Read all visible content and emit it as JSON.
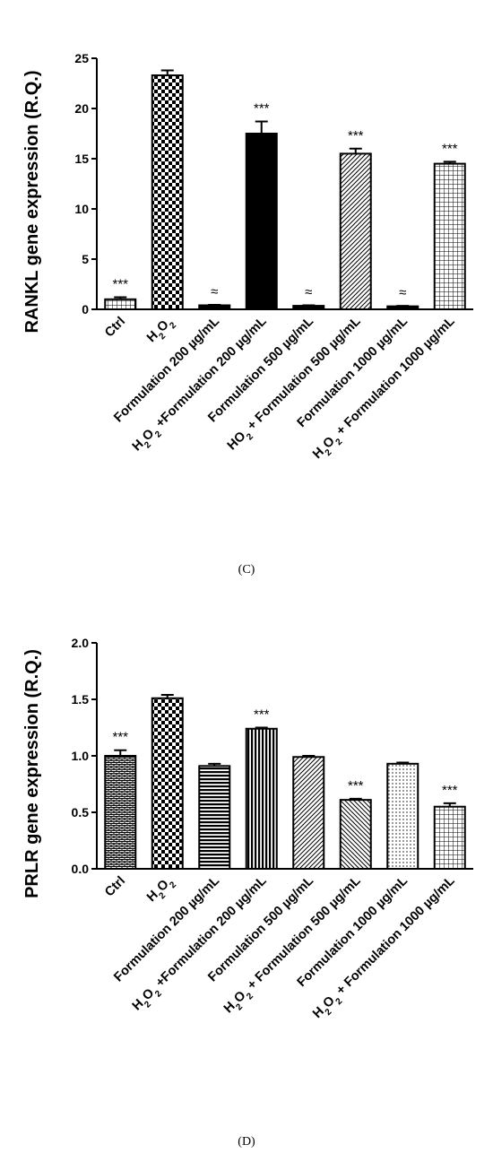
{
  "chart_data": [
    {
      "panel_label": "(C)",
      "type": "bar",
      "ylabel": "RANKL gene expression (R.Q.)",
      "xlabel": "",
      "ylim": [
        0,
        25
      ],
      "yticks": [
        "0",
        "5",
        "10",
        "15",
        "20",
        "25"
      ],
      "grid": false,
      "categories": [
        {
          "parts": [
            {
              "t": "Ctrl"
            }
          ]
        },
        {
          "parts": [
            {
              "t": "H"
            },
            {
              "t": "2",
              "sub": true
            },
            {
              "t": "O"
            },
            {
              "t": "2",
              "sub": true
            }
          ]
        },
        {
          "parts": [
            {
              "t": "Formulation 200 µg/mL"
            }
          ]
        },
        {
          "parts": [
            {
              "t": "H"
            },
            {
              "t": "2",
              "sub": true
            },
            {
              "t": "O"
            },
            {
              "t": "2",
              "sub": true
            },
            {
              "t": " +Formulation 200 µg/mL"
            }
          ]
        },
        {
          "parts": [
            {
              "t": "Formulation 500 µg/mL"
            }
          ]
        },
        {
          "parts": [
            {
              "t": "H"
            },
            {
              "t": "O"
            },
            {
              "t": "2",
              "sub": true
            },
            {
              "t": " + Formulation 500 µg/mL"
            }
          ]
        },
        {
          "parts": [
            {
              "t": "Formulation 1000 µg/mL"
            }
          ]
        },
        {
          "parts": [
            {
              "t": "H"
            },
            {
              "t": "2",
              "sub": true
            },
            {
              "t": "O"
            },
            {
              "t": "2",
              "sub": true
            },
            {
              "t": " + Formulation 1000 µg/mL"
            }
          ]
        }
      ],
      "values": [
        1.0,
        23.3,
        0.4,
        17.5,
        0.35,
        15.5,
        0.3,
        14.5
      ],
      "errors": [
        0.2,
        0.5,
        0.05,
        1.2,
        0.05,
        0.5,
        0.05,
        0.2
      ],
      "annotations": [
        "***",
        "",
        "≈",
        "***",
        "≈",
        "***",
        "≈",
        "***"
      ],
      "patterns": [
        "grid",
        "checker",
        "solid",
        "solid",
        "solid",
        "diag",
        "solid",
        "grid"
      ]
    },
    {
      "panel_label": "(D)",
      "type": "bar",
      "ylabel": "PRLR gene expression (R.Q.)",
      "xlabel": "",
      "ylim": [
        0,
        2.0
      ],
      "yticks": [
        "0.0",
        "0.5",
        "1.0",
        "1.5",
        "2.0"
      ],
      "grid": false,
      "categories": [
        {
          "parts": [
            {
              "t": "Ctrl"
            }
          ]
        },
        {
          "parts": [
            {
              "t": "H"
            },
            {
              "t": "2",
              "sub": true
            },
            {
              "t": "O"
            },
            {
              "t": "2",
              "sub": true
            }
          ]
        },
        {
          "parts": [
            {
              "t": "Formulation 200 µg/mL"
            }
          ]
        },
        {
          "parts": [
            {
              "t": "H"
            },
            {
              "t": "2",
              "sub": true
            },
            {
              "t": "O"
            },
            {
              "t": "2",
              "sub": true
            },
            {
              "t": " +Formulation 200 µg/mL"
            }
          ]
        },
        {
          "parts": [
            {
              "t": "Formulation 500 µg/mL"
            }
          ]
        },
        {
          "parts": [
            {
              "t": "H"
            },
            {
              "t": "2",
              "sub": true
            },
            {
              "t": "O"
            },
            {
              "t": "2",
              "sub": true
            },
            {
              "t": " + Formulation 500 µg/mL"
            }
          ]
        },
        {
          "parts": [
            {
              "t": "Formulation 1000 µg/mL"
            }
          ]
        },
        {
          "parts": [
            {
              "t": "H"
            },
            {
              "t": "2",
              "sub": true
            },
            {
              "t": "O"
            },
            {
              "t": "2",
              "sub": true
            },
            {
              "t": " + Formulation 1000 µg/mL"
            }
          ]
        }
      ],
      "values": [
        1.0,
        1.51,
        0.91,
        1.24,
        0.99,
        0.61,
        0.93,
        0.55
      ],
      "errors": [
        0.05,
        0.03,
        0.02,
        0.01,
        0.01,
        0.01,
        0.01,
        0.03
      ],
      "annotations": [
        "***",
        "",
        "",
        "***",
        "",
        "***",
        "",
        "***"
      ],
      "patterns": [
        "bricks",
        "checker",
        "hlines",
        "vlines",
        "diag",
        "antidiag",
        "dots",
        "grid"
      ]
    }
  ]
}
